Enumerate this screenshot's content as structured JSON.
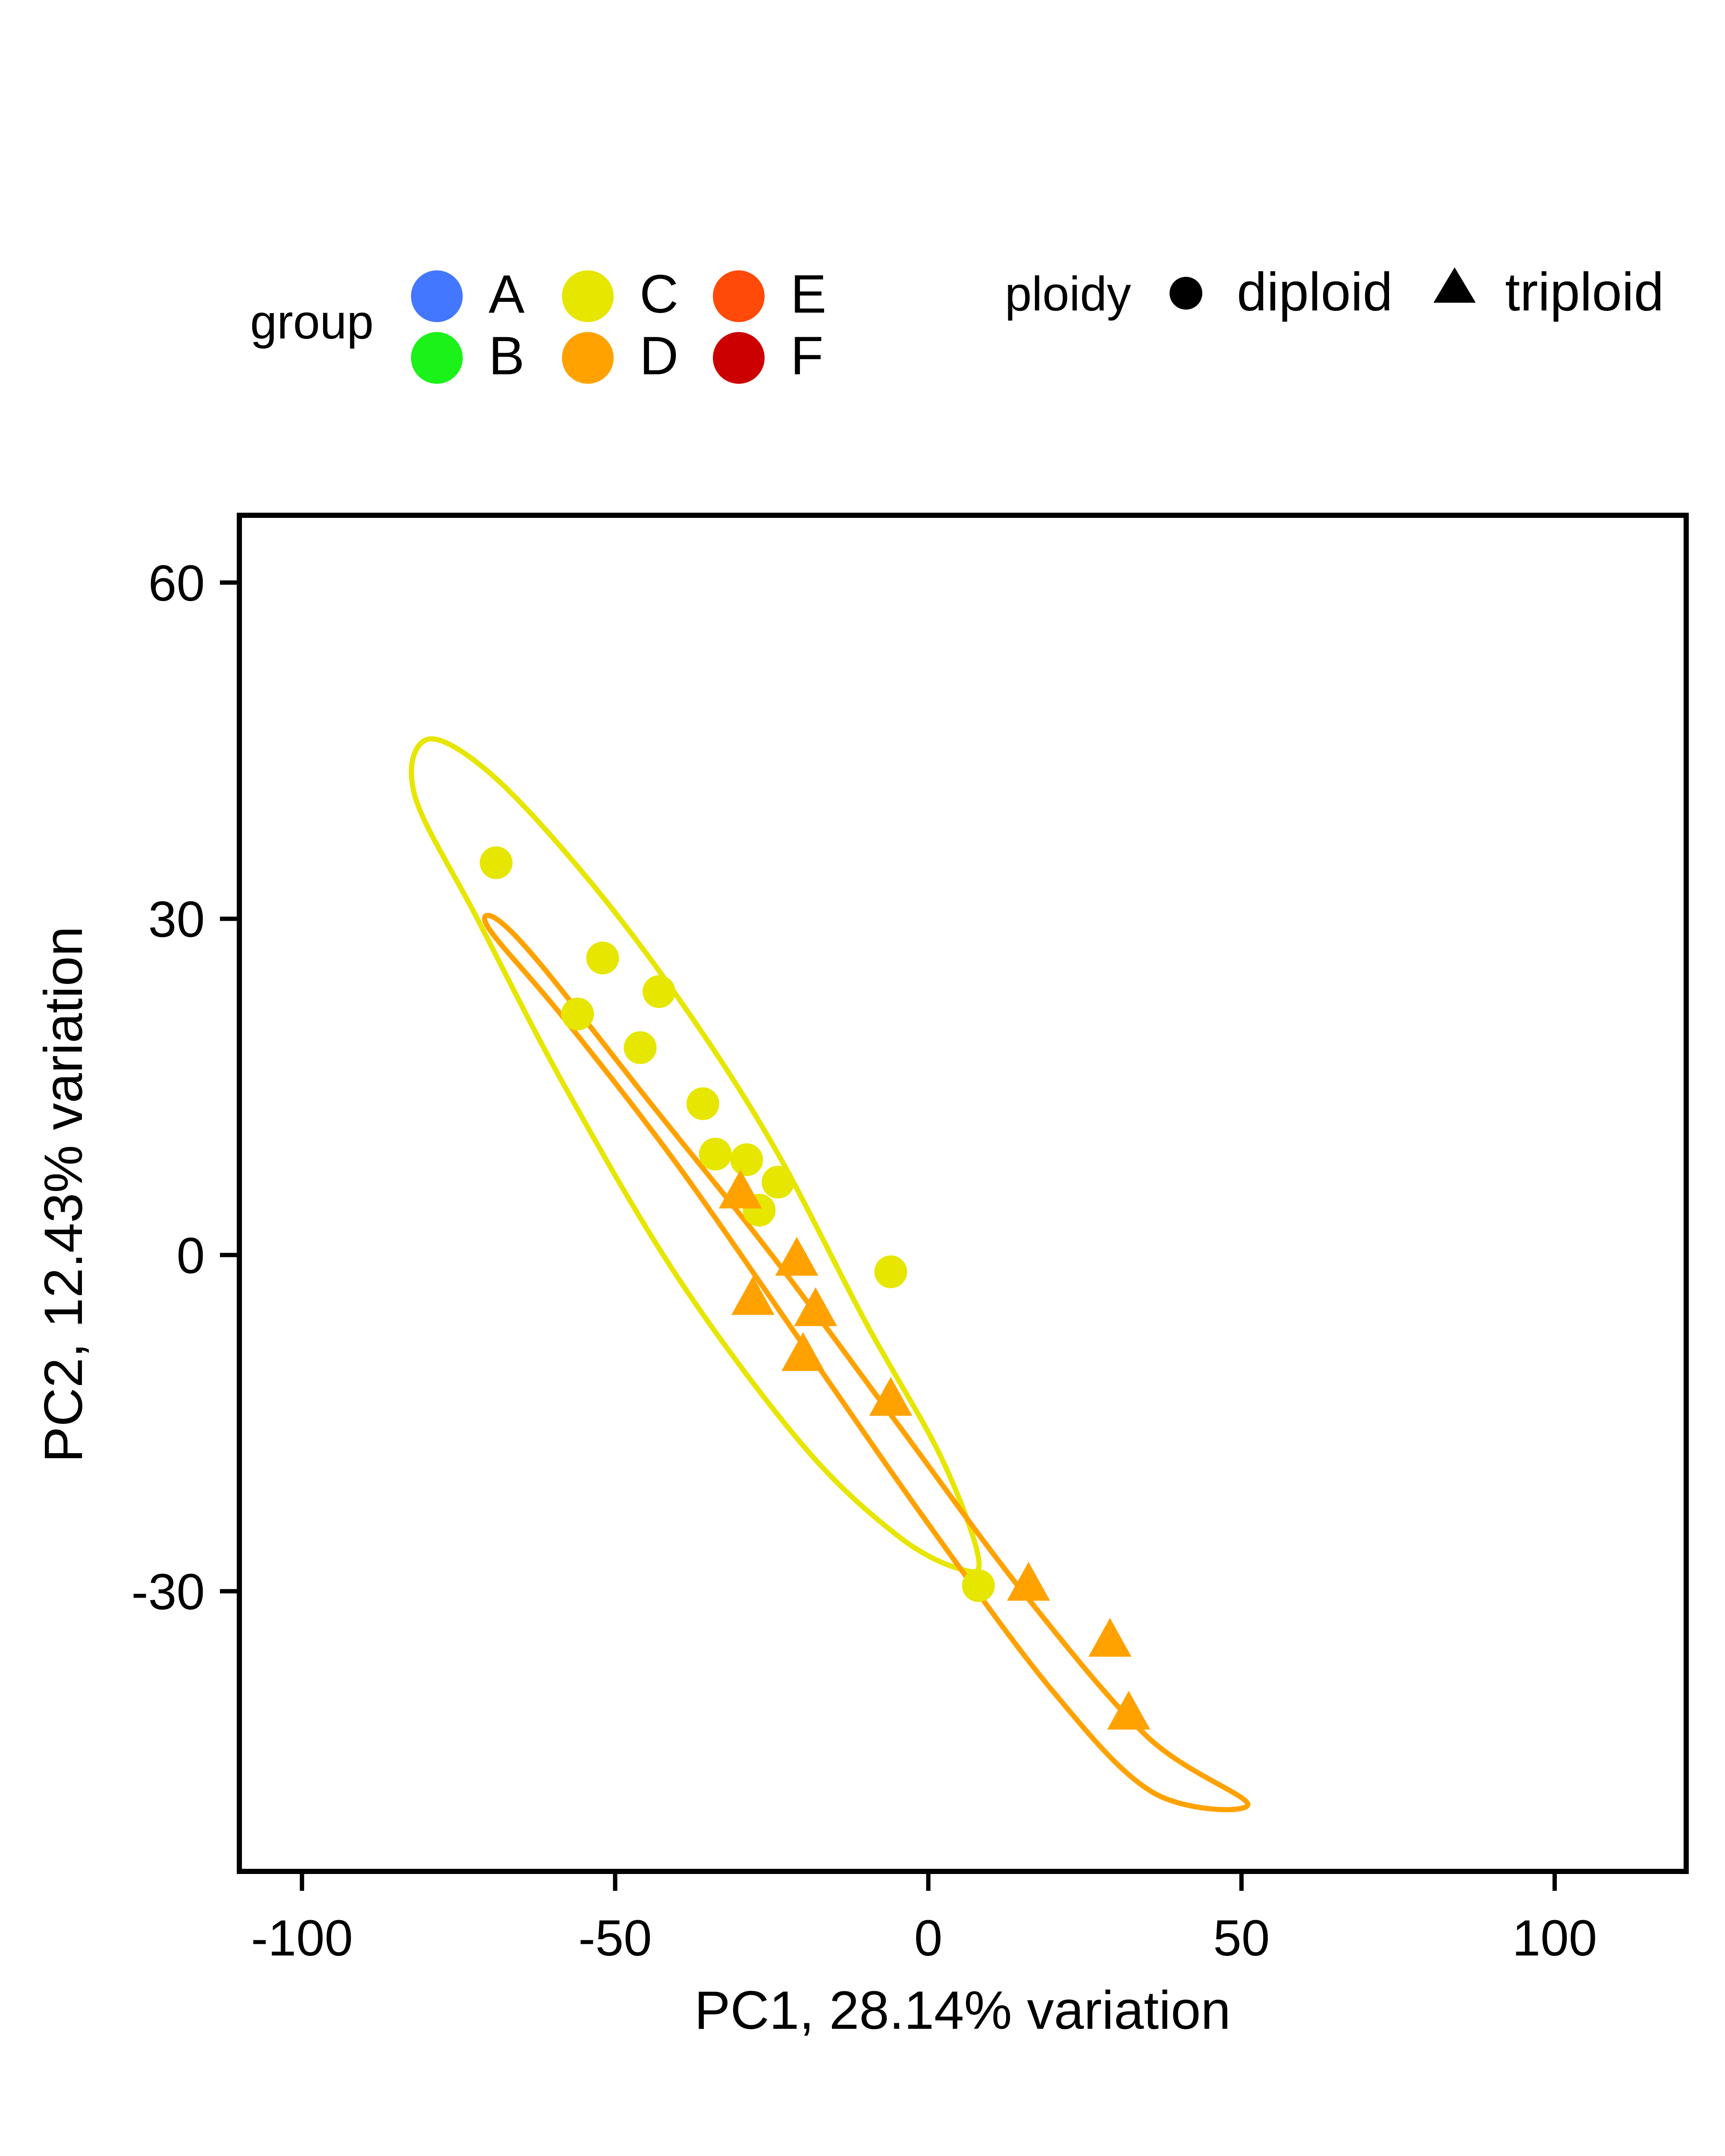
{
  "chart_data": {
    "type": "scatter",
    "title": "",
    "xlabel": "PC1, 28.14% variation",
    "ylabel": "PC2, 12.43% variation",
    "xlim": [
      -110,
      121
    ],
    "ylim": [
      -55,
      66
    ],
    "xticks": [
      -100,
      -50,
      0,
      50,
      100
    ],
    "yticks": [
      -30,
      0,
      30,
      60
    ],
    "grid": false,
    "legend": {
      "position": "top",
      "group_title": "group",
      "groups": [
        {
          "label": "A",
          "color": "#4477FF"
        },
        {
          "label": "B",
          "color": "#1AF21A"
        },
        {
          "label": "C",
          "color": "#E6E600"
        },
        {
          "label": "D",
          "color": "#FFA200"
        },
        {
          "label": "E",
          "color": "#FF4A0A"
        },
        {
          "label": "F",
          "color": "#CC0000"
        }
      ],
      "shape_title": "ploidy",
      "shapes": [
        {
          "label": "diploid",
          "shape": "circle"
        },
        {
          "label": "triploid",
          "shape": "triangle"
        }
      ]
    },
    "points": [
      {
        "x": -69,
        "y": 35,
        "group": "C",
        "ploidy": "diploid"
      },
      {
        "x": -52,
        "y": 26.5,
        "group": "C",
        "ploidy": "diploid"
      },
      {
        "x": -43,
        "y": 23.5,
        "group": "C",
        "ploidy": "diploid"
      },
      {
        "x": -56,
        "y": 21.5,
        "group": "C",
        "ploidy": "diploid"
      },
      {
        "x": -46,
        "y": 18.5,
        "group": "C",
        "ploidy": "diploid"
      },
      {
        "x": -36,
        "y": 13.5,
        "group": "C",
        "ploidy": "diploid"
      },
      {
        "x": -34,
        "y": 9,
        "group": "C",
        "ploidy": "diploid"
      },
      {
        "x": -29,
        "y": 8.5,
        "group": "C",
        "ploidy": "diploid"
      },
      {
        "x": -24,
        "y": 6.5,
        "group": "C",
        "ploidy": "diploid"
      },
      {
        "x": -27,
        "y": 4,
        "group": "C",
        "ploidy": "diploid"
      },
      {
        "x": -6,
        "y": -1.5,
        "group": "C",
        "ploidy": "diploid"
      },
      {
        "x": 8,
        "y": -29.5,
        "group": "C",
        "ploidy": "diploid"
      },
      {
        "x": -30,
        "y": 5.5,
        "group": "D",
        "ploidy": "triploid"
      },
      {
        "x": -21,
        "y": -0.5,
        "group": "D",
        "ploidy": "triploid"
      },
      {
        "x": -28,
        "y": -4,
        "group": "D",
        "ploidy": "triploid"
      },
      {
        "x": -18,
        "y": -5,
        "group": "D",
        "ploidy": "triploid"
      },
      {
        "x": -20,
        "y": -9,
        "group": "D",
        "ploidy": "triploid"
      },
      {
        "x": -6,
        "y": -13,
        "group": "D",
        "ploidy": "triploid"
      },
      {
        "x": 16,
        "y": -29.5,
        "group": "D",
        "ploidy": "triploid"
      },
      {
        "x": 29,
        "y": -34.5,
        "group": "D",
        "ploidy": "triploid"
      },
      {
        "x": 32,
        "y": -41,
        "group": "D",
        "ploidy": "triploid"
      }
    ],
    "ellipses": [
      {
        "group": "C",
        "color": "#E6E600",
        "path": [
          [
            -80,
            46
          ],
          [
            -70,
            43
          ],
          [
            -55,
            34
          ],
          [
            -40,
            23
          ],
          [
            -25,
            10
          ],
          [
            -10,
            -6
          ],
          [
            2,
            -18
          ],
          [
            8,
            -27
          ],
          [
            5,
            -28
          ],
          [
            -5,
            -25
          ],
          [
            -20,
            -17
          ],
          [
            -40,
            -2
          ],
          [
            -58,
            15
          ],
          [
            -72,
            30
          ],
          [
            -82,
            41
          ]
        ]
      },
      {
        "group": "D",
        "color": "#FFA200",
        "path": [
          [
            -69,
            30
          ],
          [
            -62,
            26
          ],
          [
            -45,
            14
          ],
          [
            -25,
            0
          ],
          [
            -5,
            -15
          ],
          [
            15,
            -30
          ],
          [
            35,
            -43
          ],
          [
            51,
            -49
          ],
          [
            36,
            -48
          ],
          [
            20,
            -39
          ],
          [
            0,
            -24
          ],
          [
            -20,
            -8
          ],
          [
            -40,
            8
          ],
          [
            -58,
            21
          ],
          [
            -70,
            29
          ]
        ]
      }
    ]
  }
}
